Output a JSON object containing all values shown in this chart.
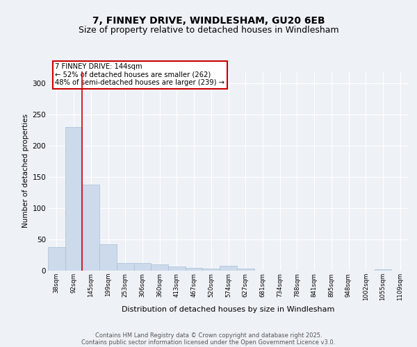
{
  "title1": "7, FINNEY DRIVE, WINDLESHAM, GU20 6EB",
  "title2": "Size of property relative to detached houses in Windlesham",
  "xlabel": "Distribution of detached houses by size in Windlesham",
  "ylabel": "Number of detached properties",
  "footnote1": "Contains HM Land Registry data © Crown copyright and database right 2025.",
  "footnote2": "Contains public sector information licensed under the Open Government Licence v3.0.",
  "bar_labels": [
    "38sqm",
    "92sqm",
    "145sqm",
    "199sqm",
    "253sqm",
    "306sqm",
    "360sqm",
    "413sqm",
    "467sqm",
    "520sqm",
    "574sqm",
    "627sqm",
    "681sqm",
    "734sqm",
    "788sqm",
    "841sqm",
    "895sqm",
    "948sqm",
    "1002sqm",
    "1055sqm",
    "1109sqm"
  ],
  "bar_values": [
    38,
    230,
    138,
    42,
    12,
    12,
    10,
    7,
    5,
    3,
    8,
    3,
    0,
    0,
    0,
    0,
    0,
    0,
    0,
    2,
    0
  ],
  "bar_color": "#ccdaeb",
  "bar_edge_color": "#aabfd8",
  "vline_color": "#cc0000",
  "annotation_text": "7 FINNEY DRIVE: 144sqm\n← 52% of detached houses are smaller (262)\n48% of semi-detached houses are larger (239) →",
  "annotation_box_color": "#cc0000",
  "ylim": [
    0,
    320
  ],
  "yticks": [
    0,
    50,
    100,
    150,
    200,
    250,
    300
  ],
  "bg_color": "#eef2f7",
  "plot_bg_color": "#eef2f7",
  "grid_color": "#ffffff",
  "title1_fontsize": 10,
  "title2_fontsize": 9
}
